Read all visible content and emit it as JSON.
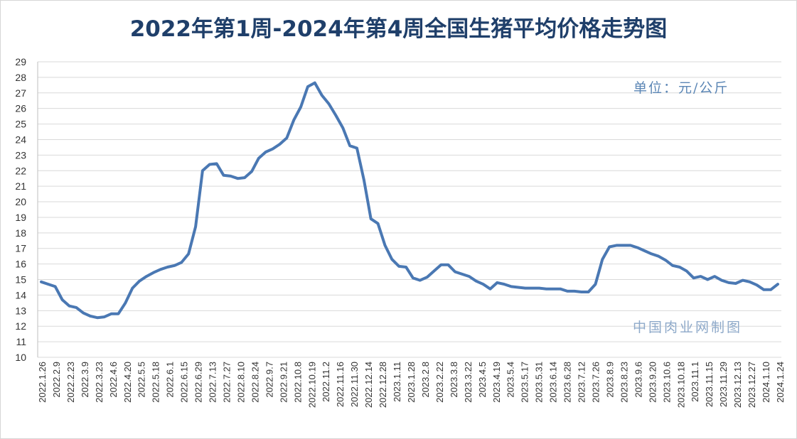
{
  "title": "2022年第1周-2024年第4周全国生猪平均价格走势图",
  "unit_note": "单位：元/公斤",
  "credit": "中国肉业网制图",
  "colors": {
    "line": "#4a78b3",
    "grid": "#d9d9d9",
    "title": "#1f3f6a"
  },
  "chart_data": {
    "type": "line",
    "title": "2022年第1周-2024年第4周全国生猪平均价格走势图",
    "xlabel": "",
    "ylabel": "",
    "ylim": [
      10,
      29
    ],
    "grid": true,
    "legend": "none",
    "yticks": [
      10,
      11,
      12,
      13,
      14,
      15,
      16,
      17,
      18,
      19,
      20,
      21,
      22,
      23,
      24,
      25,
      26,
      27,
      28,
      29
    ],
    "xticks": [
      "2022.1.26",
      "2022.2.9",
      "2022.2.23",
      "2022.3.9",
      "2022.3.23",
      "2022.4.6",
      "2022.4.20",
      "2022.5.5",
      "2022.5.18",
      "2022.6.1",
      "2022.6.15",
      "2022.6.29",
      "2022.7.13",
      "2022.7.27",
      "2022.8.10",
      "2022.8.24",
      "2022.9.7",
      "2022.9.21",
      "2022.10.8",
      "2022.10.19",
      "2022.11.2",
      "2022.11.16",
      "2022.11.30",
      "2022.12.14",
      "2022.12.28",
      "2023.1.11",
      "2023.1.28",
      "2023.2.8",
      "2023.2.22",
      "2023.3.8",
      "2023.3.22",
      "2023.4.5",
      "2023.4.19",
      "2023.5.4",
      "2023.5.17",
      "2023.5.31",
      "2023.6.14",
      "2023.6.28",
      "2023.7.12",
      "2023.7.26",
      "2023.8.9",
      "2023.8.23",
      "2023.9.6",
      "2023.9.20",
      "2023.10.6",
      "2023.10.18",
      "2023.11.1",
      "2023.11.15",
      "2023.11.29",
      "2023.12.13",
      "2023.12.27",
      "2024.1.10",
      "2024.1.24"
    ],
    "values": [
      14.85,
      14.7,
      14.55,
      13.7,
      13.3,
      13.2,
      12.85,
      12.65,
      12.55,
      12.6,
      12.8,
      12.8,
      13.5,
      14.45,
      14.9,
      15.2,
      15.45,
      15.65,
      15.8,
      15.9,
      16.1,
      16.65,
      18.4,
      22.0,
      22.4,
      22.45,
      21.7,
      21.65,
      21.5,
      21.55,
      21.95,
      22.8,
      23.2,
      23.4,
      23.7,
      24.1,
      25.25,
      26.1,
      27.4,
      27.65,
      26.85,
      26.3,
      25.55,
      24.75,
      23.6,
      23.45,
      21.4,
      18.9,
      18.6,
      17.2,
      16.3,
      15.85,
      15.8,
      15.1,
      14.95,
      15.15,
      15.55,
      15.95,
      15.95,
      15.5,
      15.35,
      15.2,
      14.9,
      14.7,
      14.4,
      14.8,
      14.7,
      14.55,
      14.5,
      14.45,
      14.45,
      14.45,
      14.4,
      14.4,
      14.4,
      14.25,
      14.25,
      14.2,
      14.2,
      14.7,
      16.3,
      17.1,
      17.2,
      17.2,
      17.2,
      17.05,
      16.85,
      16.65,
      16.5,
      16.25,
      15.9,
      15.8,
      15.55,
      15.1,
      15.2,
      15.0,
      15.2,
      14.95,
      14.8,
      14.75,
      14.95,
      14.85,
      14.65,
      14.35,
      14.35,
      14.7
    ]
  }
}
